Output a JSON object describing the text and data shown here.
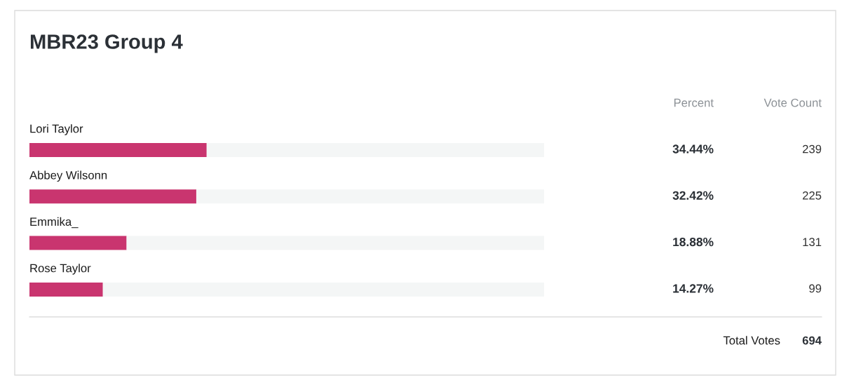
{
  "chart_data": {
    "type": "bar",
    "title": "MBR23 Group 4",
    "orientation": "horizontal",
    "stacked": true,
    "categories": [
      "Lori Taylor",
      "Abbey Wilsonn",
      "Emmika_",
      "Rose Taylor"
    ],
    "series": [
      {
        "color": "#c9356f",
        "values": [
          34.44,
          32.42,
          18.88,
          14.27
        ],
        "value_labels": [
          "34.44%",
          "32.42%",
          "18.88%",
          "14.27%"
        ]
      },
      {
        "color": "#f4f6f6",
        "values": [
          65.56,
          67.58,
          81.12,
          85.73
        ]
      }
    ],
    "xlim": [
      0,
      100
    ],
    "tick_labels": false,
    "annotations": [
      "Percent",
      "Vote Count",
      "239",
      "225",
      "131",
      "99",
      "Total Votes",
      "694"
    ]
  }
}
